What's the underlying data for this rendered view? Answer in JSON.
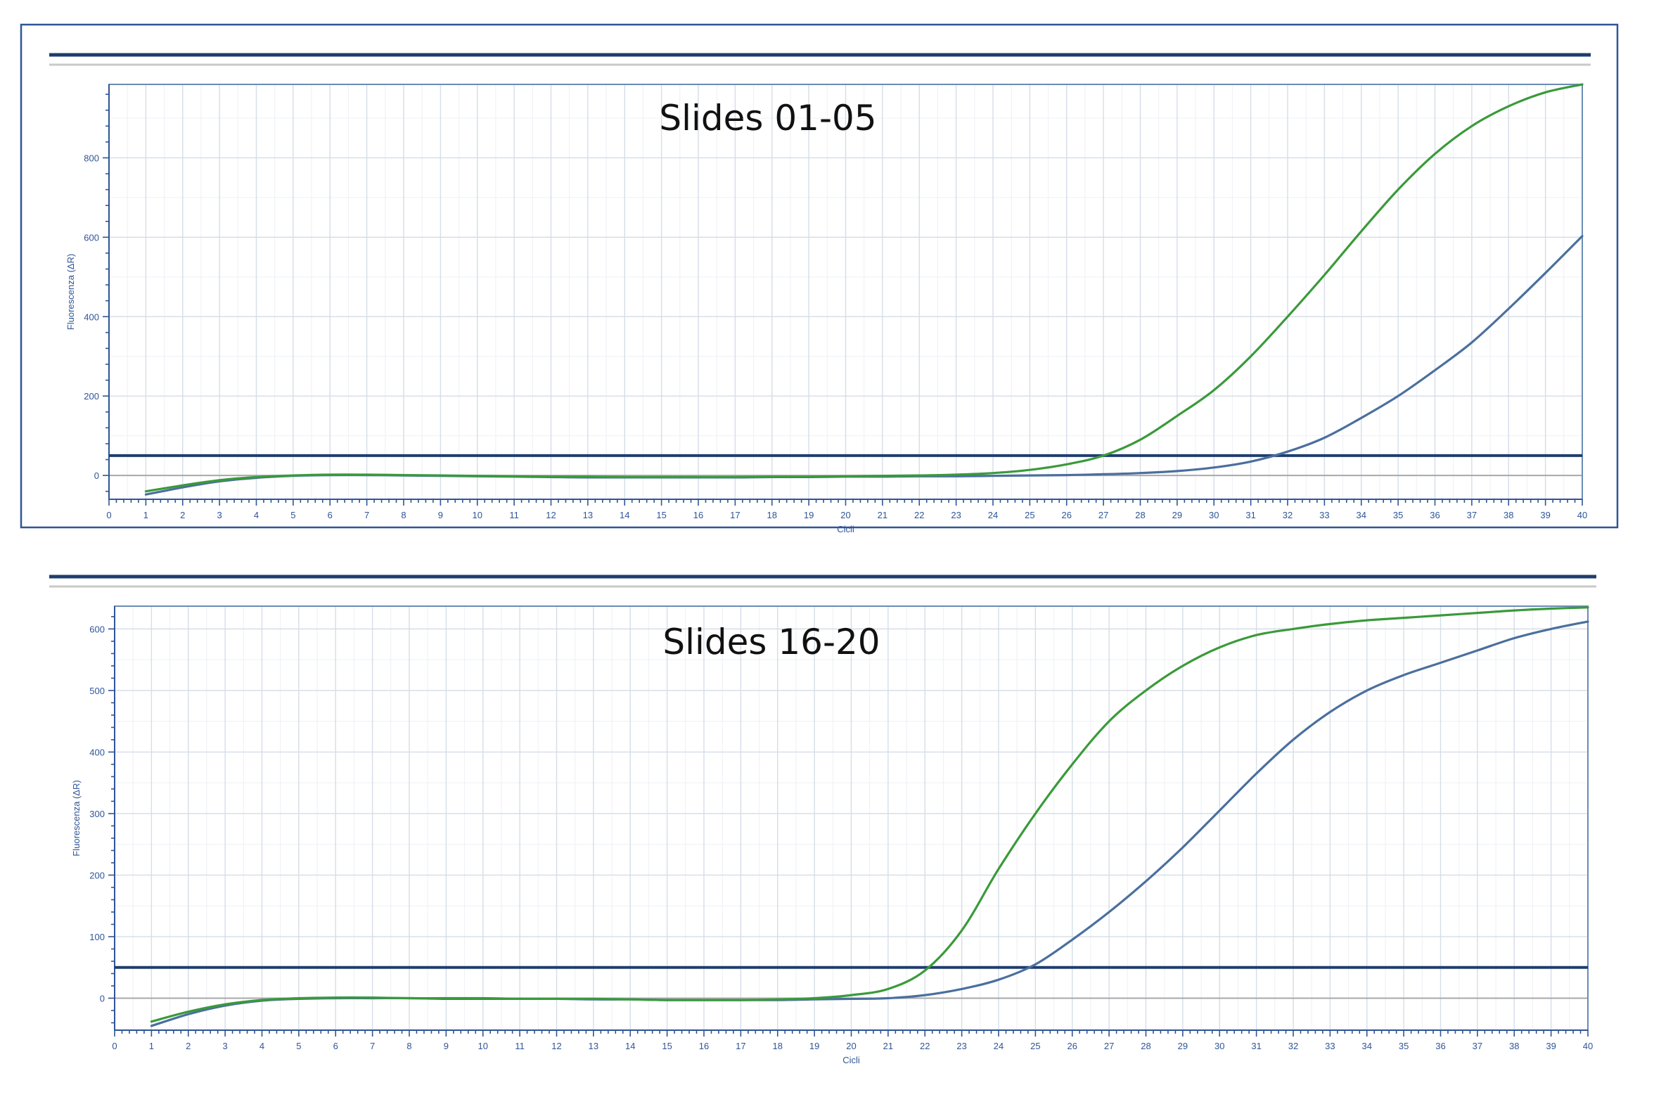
{
  "colors": {
    "frame": "#2f5597",
    "threshold": "#1f3d6e",
    "series_green": "#3a9a3a",
    "series_blue": "#4a6f9e"
  },
  "chart_data": [
    {
      "type": "line",
      "title": "Slides 01-05",
      "xlabel": "Cicli",
      "ylabel": "Fluorescenza (ΔR)",
      "xlim": [
        0,
        40
      ],
      "ylim": [
        -60,
        985
      ],
      "xticks": [
        0,
        1,
        2,
        3,
        4,
        5,
        6,
        7,
        8,
        9,
        10,
        11,
        12,
        13,
        14,
        15,
        16,
        17,
        18,
        19,
        20,
        21,
        22,
        23,
        24,
        25,
        26,
        27,
        28,
        29,
        30,
        31,
        32,
        33,
        34,
        35,
        36,
        37,
        38,
        39,
        40
      ],
      "yticks": [
        0,
        200,
        400,
        600,
        800
      ],
      "grid": true,
      "threshold": 50,
      "series": [
        {
          "color": "#3a9a3a",
          "x": [
            1,
            2,
            3,
            4,
            5,
            6,
            7,
            8,
            9,
            10,
            11,
            12,
            13,
            14,
            15,
            16,
            17,
            18,
            19,
            20,
            21,
            22,
            23,
            24,
            25,
            26,
            27,
            28,
            29,
            30,
            31,
            32,
            33,
            34,
            35,
            36,
            37,
            38,
            39,
            40
          ],
          "values": [
            -40,
            -25,
            -12,
            -4,
            0,
            2,
            2,
            1,
            0,
            -1,
            -2,
            -3,
            -3,
            -4,
            -4,
            -4,
            -4,
            -3,
            -3,
            -2,
            -1,
            0,
            2,
            6,
            14,
            28,
            50,
            90,
            150,
            215,
            300,
            400,
            505,
            615,
            720,
            810,
            880,
            930,
            965,
            985
          ]
        },
        {
          "color": "#4a6f9e",
          "x": [
            1,
            2,
            3,
            4,
            5,
            6,
            7,
            8,
            9,
            10,
            11,
            12,
            13,
            14,
            15,
            16,
            17,
            18,
            19,
            20,
            21,
            22,
            23,
            24,
            25,
            26,
            27,
            28,
            29,
            30,
            31,
            32,
            33,
            34,
            35,
            36,
            37,
            38,
            39,
            40
          ],
          "values": [
            -48,
            -30,
            -15,
            -6,
            -1,
            1,
            1,
            0,
            -1,
            -2,
            -3,
            -4,
            -5,
            -5,
            -5,
            -5,
            -5,
            -4,
            -4,
            -3,
            -3,
            -2,
            -2,
            -1,
            0,
            1,
            3,
            6,
            11,
            20,
            35,
            60,
            95,
            145,
            200,
            265,
            335,
            420,
            510,
            603
          ]
        }
      ]
    },
    {
      "type": "line",
      "title": "Slides 16-20",
      "xlabel": "Cicli",
      "ylabel": "Fluorescenza (ΔR)",
      "xlim": [
        0,
        40
      ],
      "ylim": [
        -52,
        637
      ],
      "xticks": [
        0,
        1,
        2,
        3,
        4,
        5,
        6,
        7,
        8,
        9,
        10,
        11,
        12,
        13,
        14,
        15,
        16,
        17,
        18,
        19,
        20,
        21,
        22,
        23,
        24,
        25,
        26,
        27,
        28,
        29,
        30,
        31,
        32,
        33,
        34,
        35,
        36,
        37,
        38,
        39,
        40
      ],
      "yticks": [
        0,
        100,
        200,
        300,
        400,
        500,
        600
      ],
      "grid": true,
      "threshold": 50,
      "series": [
        {
          "color": "#3a9a3a",
          "x": [
            1,
            2,
            3,
            4,
            5,
            6,
            7,
            8,
            9,
            10,
            11,
            12,
            13,
            14,
            15,
            16,
            17,
            18,
            19,
            20,
            21,
            22,
            23,
            24,
            25,
            26,
            27,
            28,
            29,
            30,
            31,
            32,
            33,
            34,
            35,
            36,
            37,
            38,
            39,
            40
          ],
          "values": [
            -38,
            -22,
            -10,
            -3,
            0,
            1,
            1,
            0,
            0,
            0,
            -1,
            -1,
            -1,
            -2,
            -3,
            -3,
            -3,
            -2,
            0,
            5,
            15,
            45,
            110,
            210,
            300,
            380,
            450,
            500,
            540,
            570,
            590,
            600,
            608,
            614,
            618,
            622,
            626,
            630,
            633,
            635
          ]
        },
        {
          "color": "#4a6f9e",
          "x": [
            1,
            2,
            3,
            4,
            5,
            6,
            7,
            8,
            9,
            10,
            11,
            12,
            13,
            14,
            15,
            16,
            17,
            18,
            19,
            20,
            21,
            22,
            23,
            24,
            25,
            26,
            27,
            28,
            29,
            30,
            31,
            32,
            33,
            34,
            35,
            36,
            37,
            38,
            39,
            40
          ],
          "values": [
            -45,
            -26,
            -12,
            -4,
            -1,
            0,
            0,
            0,
            -1,
            -1,
            -1,
            -1,
            -2,
            -2,
            -3,
            -3,
            -3,
            -3,
            -2,
            -1,
            0,
            5,
            15,
            30,
            55,
            95,
            140,
            190,
            245,
            305,
            365,
            420,
            465,
            500,
            525,
            545,
            565,
            585,
            600,
            612
          ]
        }
      ]
    }
  ]
}
